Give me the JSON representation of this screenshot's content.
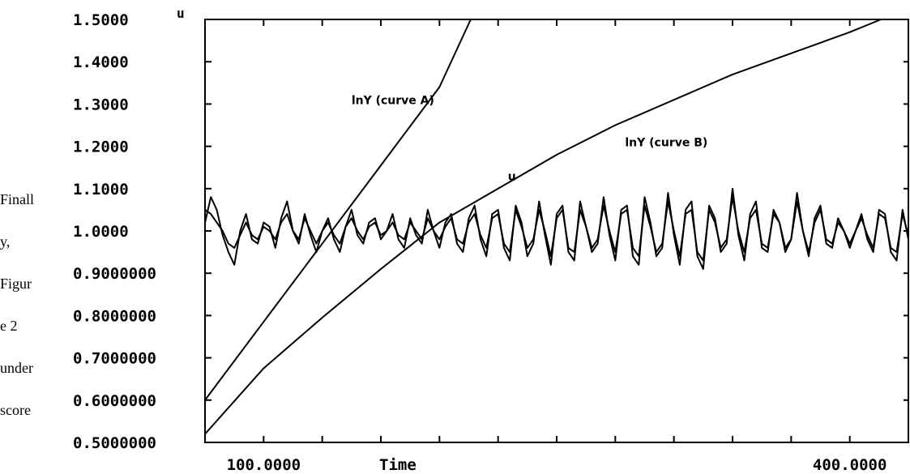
{
  "side_text": [
    "Finall",
    "y,",
    "Figur",
    "e 2",
    "under",
    "score"
  ],
  "chart_data": {
    "type": "line",
    "ylabel": "u",
    "xlabel": "Time",
    "xlim": [
      70,
      430
    ],
    "ylim": [
      0.5,
      1.5
    ],
    "y_ticks": [
      "1.5000",
      "1.4000",
      "1.3000",
      "1.2000",
      "1.1000",
      "1.0000",
      "0.9000000",
      "0.8000000",
      "0.7000000",
      "0.6000000",
      "0.5000000"
    ],
    "y_tick_values": [
      1.5,
      1.4,
      1.3,
      1.2,
      1.1,
      1.0,
      0.9,
      0.8,
      0.7,
      0.6,
      0.5
    ],
    "x_ticks": [
      "100.0000",
      "400.0000"
    ],
    "x_tick_values": [
      100,
      400
    ],
    "x_minor_ticks": [
      100,
      130,
      160,
      190,
      220,
      250,
      280,
      310,
      340,
      370,
      400
    ],
    "annotations": [
      {
        "text": "lnY (curve A)",
        "x": 145,
        "y": 1.3
      },
      {
        "text": "lnY (curve B)",
        "x": 285,
        "y": 1.2
      },
      {
        "text": "u",
        "x": 225,
        "y": 1.12
      }
    ],
    "series": [
      {
        "x": [
          70,
          100,
          130,
          160,
          190,
          206
        ],
        "y": [
          0.6,
          0.785,
          0.97,
          1.155,
          1.34,
          1.5
        ]
      },
      {
        "x": [
          70,
          100,
          130,
          160,
          190,
          220,
          250,
          280,
          310,
          340,
          370,
          400,
          416
        ],
        "y": [
          0.52,
          0.675,
          0.795,
          0.91,
          1.02,
          1.1,
          1.18,
          1.25,
          1.31,
          1.37,
          1.42,
          1.47,
          1.5
        ]
      },
      {
        "x": [
          70,
          73,
          76,
          79,
          82,
          85,
          88,
          91,
          94,
          97,
          100,
          103,
          106,
          109,
          112,
          115,
          118,
          121,
          124,
          127,
          130,
          133,
          136,
          139,
          142,
          145,
          148,
          151,
          154,
          157,
          160,
          163,
          166,
          169,
          172,
          175,
          178,
          181,
          184,
          187,
          190,
          193,
          196,
          199,
          202,
          205,
          208,
          211,
          214,
          217,
          220,
          223,
          226,
          229,
          232,
          235,
          238,
          241,
          244,
          247,
          250,
          253,
          256,
          259,
          262,
          265,
          268,
          271,
          274,
          277,
          280,
          283,
          286,
          289,
          292,
          295,
          298,
          301,
          304,
          307,
          310,
          313,
          316,
          319,
          322,
          325,
          328,
          331,
          334,
          337,
          340,
          343,
          346,
          349,
          352,
          355,
          358,
          361,
          364,
          367,
          370,
          373,
          376,
          379,
          382,
          385,
          388,
          391,
          394,
          397,
          400,
          403,
          406,
          409,
          412,
          415,
          418,
          421,
          424,
          427,
          430
        ],
        "y": [
          1.02,
          1.08,
          1.05,
          0.99,
          0.95,
          0.92,
          1.0,
          1.04,
          0.98,
          0.97,
          1.02,
          1.01,
          0.96,
          1.03,
          1.07,
          1.0,
          0.97,
          1.04,
          0.99,
          0.95,
          1.0,
          1.03,
          0.98,
          0.95,
          1.01,
          1.05,
          0.99,
          0.97,
          1.02,
          1.03,
          0.98,
          1.0,
          1.04,
          0.98,
          0.96,
          1.03,
          0.99,
          0.97,
          1.05,
          1.0,
          0.96,
          1.02,
          1.04,
          0.97,
          0.95,
          1.03,
          1.06,
          0.98,
          0.94,
          1.04,
          1.05,
          0.96,
          0.93,
          1.06,
          1.02,
          0.94,
          0.97,
          1.07,
          0.99,
          0.92,
          1.04,
          1.06,
          0.95,
          0.93,
          1.07,
          1.01,
          0.95,
          0.97,
          1.08,
          0.99,
          0.93,
          1.05,
          1.06,
          0.94,
          0.92,
          1.08,
          1.02,
          0.94,
          0.96,
          1.09,
          0.99,
          0.92,
          1.05,
          1.07,
          0.94,
          0.91,
          1.06,
          1.03,
          0.95,
          0.97,
          1.1,
          0.99,
          0.93,
          1.04,
          1.07,
          0.96,
          0.95,
          1.05,
          1.02,
          0.95,
          0.98,
          1.09,
          1.0,
          0.94,
          1.03,
          1.06,
          0.97,
          0.96,
          1.03,
          1.0,
          0.96,
          1.0,
          1.04,
          0.98,
          0.95,
          1.05,
          1.04,
          0.95,
          0.93,
          1.05,
          0.98
        ]
      },
      {
        "x": [
          70,
          73,
          76,
          79,
          82,
          85,
          88,
          91,
          94,
          97,
          100,
          103,
          106,
          109,
          112,
          115,
          118,
          121,
          124,
          127,
          130,
          133,
          136,
          139,
          142,
          145,
          148,
          151,
          154,
          157,
          160,
          163,
          166,
          169,
          172,
          175,
          178,
          181,
          184,
          187,
          190,
          193,
          196,
          199,
          202,
          205,
          208,
          211,
          214,
          217,
          220,
          223,
          226,
          229,
          232,
          235,
          238,
          241,
          244,
          247,
          250,
          253,
          256,
          259,
          262,
          265,
          268,
          271,
          274,
          277,
          280,
          283,
          286,
          289,
          292,
          295,
          298,
          301,
          304,
          307,
          310,
          313,
          316,
          319,
          322,
          325,
          328,
          331,
          334,
          337,
          340,
          343,
          346,
          349,
          352,
          355,
          358,
          361,
          364,
          367,
          370,
          373,
          376,
          379,
          382,
          385,
          388,
          391,
          394,
          397,
          400,
          403,
          406,
          409,
          412,
          415,
          418,
          421,
          424,
          427,
          430
        ],
        "y": [
          1.05,
          1.04,
          1.02,
          1.0,
          0.97,
          0.96,
          0.99,
          1.02,
          0.99,
          0.98,
          1.01,
          1.0,
          0.98,
          1.02,
          1.04,
          1.0,
          0.98,
          1.03,
          1.0,
          0.97,
          1.0,
          1.02,
          0.99,
          0.97,
          1.01,
          1.03,
          1.0,
          0.98,
          1.01,
          1.02,
          0.99,
          1.0,
          1.02,
          0.99,
          0.98,
          1.02,
          1.0,
          0.98,
          1.03,
          1.0,
          0.98,
          1.01,
          1.03,
          0.98,
          0.97,
          1.02,
          1.04,
          0.99,
          0.96,
          1.03,
          1.04,
          0.97,
          0.95,
          1.05,
          1.01,
          0.96,
          0.98,
          1.05,
          1.0,
          0.94,
          1.03,
          1.05,
          0.96,
          0.95,
          1.05,
          1.01,
          0.96,
          0.98,
          1.06,
          1.0,
          0.95,
          1.04,
          1.05,
          0.96,
          0.94,
          1.06,
          1.01,
          0.95,
          0.97,
          1.07,
          1.0,
          0.94,
          1.04,
          1.05,
          0.95,
          0.93,
          1.05,
          1.02,
          0.96,
          0.98,
          1.08,
          1.0,
          0.95,
          1.03,
          1.05,
          0.97,
          0.96,
          1.04,
          1.02,
          0.96,
          0.98,
          1.07,
          1.0,
          0.95,
          1.02,
          1.05,
          0.98,
          0.97,
          1.02,
          1.0,
          0.97,
          1.0,
          1.03,
          0.99,
          0.96,
          1.04,
          1.03,
          0.96,
          0.95,
          1.04,
          0.99
        ]
      }
    ]
  }
}
